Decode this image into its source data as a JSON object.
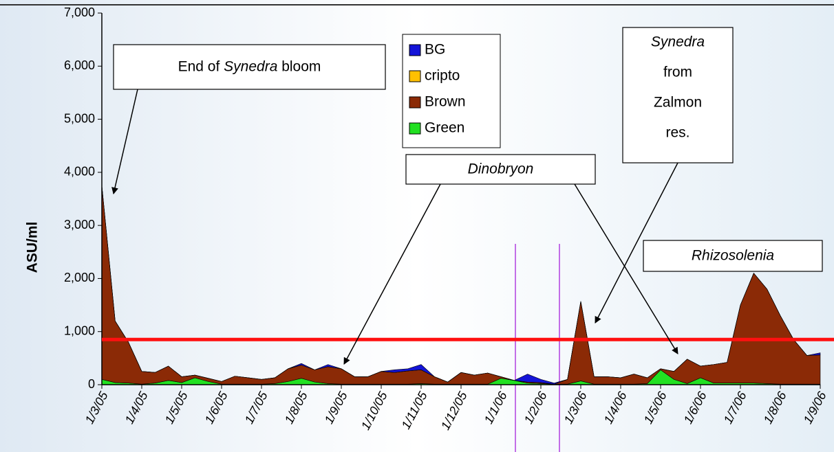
{
  "chart_data": {
    "type": "stacked_area",
    "y_label": "ASU/ml",
    "categories": [
      "1/3/05",
      null,
      null,
      "1/4/05",
      null,
      null,
      "1/5/05",
      null,
      null,
      "1/6/05",
      null,
      null,
      "1/7/05",
      null,
      null,
      "1/8/05",
      null,
      null,
      "1/9/05",
      null,
      null,
      "1/10/05",
      null,
      null,
      "1/11/05",
      null,
      null,
      "1/12/05",
      null,
      null,
      "1/1/06",
      null,
      null,
      "1/2/06",
      null,
      null,
      "1/3/06",
      null,
      null,
      "1/4/06",
      null,
      null,
      "1/5/06",
      null,
      null,
      "1/6/06",
      null,
      null,
      "1/7/06",
      null,
      null,
      "1/8/06",
      null,
      null,
      "1/9/06"
    ],
    "series": [
      {
        "name": "BG",
        "color": "#1414d8",
        "values": [
          0,
          0,
          0,
          0,
          0,
          0,
          0,
          0,
          0,
          0,
          0,
          0,
          0,
          0,
          0,
          30,
          0,
          40,
          0,
          0,
          0,
          0,
          50,
          40,
          100,
          0,
          0,
          0,
          0,
          0,
          0,
          0,
          150,
          60,
          20,
          0,
          0,
          0,
          0,
          0,
          0,
          0,
          0,
          0,
          0,
          0,
          0,
          0,
          0,
          0,
          0,
          0,
          0,
          0,
          40
        ]
      },
      {
        "name": "cripto",
        "color": "#ffc000",
        "values": [
          0,
          0,
          0,
          0,
          0,
          0,
          0,
          0,
          0,
          0,
          0,
          0,
          0,
          0,
          0,
          0,
          0,
          0,
          0,
          0,
          0,
          0,
          0,
          0,
          0,
          0,
          0,
          0,
          0,
          0,
          0,
          0,
          0,
          0,
          0,
          0,
          0,
          0,
          0,
          0,
          0,
          0,
          0,
          0,
          0,
          0,
          0,
          0,
          0,
          0,
          0,
          0,
          0,
          0,
          0
        ]
      },
      {
        "name": "Brown",
        "color": "#8b2a06",
        "values": [
          3650,
          1160,
          770,
          240,
          200,
          270,
          110,
          50,
          60,
          50,
          150,
          120,
          90,
          110,
          240,
          250,
          230,
          320,
          290,
          140,
          140,
          240,
          220,
          250,
          260,
          140,
          40,
          220,
          170,
          210,
          30,
          0,
          20,
          20,
          0,
          90,
          1500,
          140,
          140,
          120,
          190,
          110,
          20,
          150,
          460,
          220,
          350,
          390,
          1470,
          2070,
          1780,
          1290,
          840,
          540,
          550
        ]
      },
      {
        "name": "Green",
        "color": "#22e022",
        "values": [
          100,
          40,
          30,
          10,
          30,
          80,
          40,
          130,
          60,
          10,
          10,
          10,
          10,
          20,
          60,
          120,
          50,
          20,
          10,
          10,
          10,
          10,
          10,
          10,
          20,
          10,
          10,
          10,
          10,
          10,
          120,
          80,
          30,
          20,
          10,
          10,
          70,
          10,
          10,
          10,
          10,
          20,
          280,
          100,
          20,
          130,
          30,
          30,
          30,
          30,
          20,
          10,
          10,
          10,
          10
        ]
      }
    ],
    "ylim": [
      0,
      7000
    ],
    "yticks": [
      0,
      {
        "value": 1000,
        "label": "1,000"
      },
      {
        "value": 2000,
        "label": "2,000"
      },
      {
        "value": 3000,
        "label": "3,000"
      },
      {
        "value": 4000,
        "label": "4,000"
      },
      {
        "value": 5000,
        "label": "5,000"
      },
      {
        "value": 6000,
        "label": "6,000"
      },
      {
        "value": 7000,
        "label": "7,000"
      }
    ],
    "reference_line": {
      "value": 850,
      "color": "#ff1010"
    },
    "legend": "top-center",
    "annotations": [
      {
        "parts": [
          "End of ",
          "Synedra",
          " bloom"
        ],
        "italic_parts": [
          1
        ]
      },
      {
        "parts": [
          "Synedra",
          "from",
          "Zalmon",
          "res."
        ],
        "italic_parts": [
          0
        ]
      },
      {
        "parts": [
          "Dinobryon"
        ],
        "italic_parts": [
          0
        ]
      },
      {
        "parts": [
          "Rhizosolenia"
        ],
        "italic_parts": [
          0
        ]
      }
    ]
  }
}
